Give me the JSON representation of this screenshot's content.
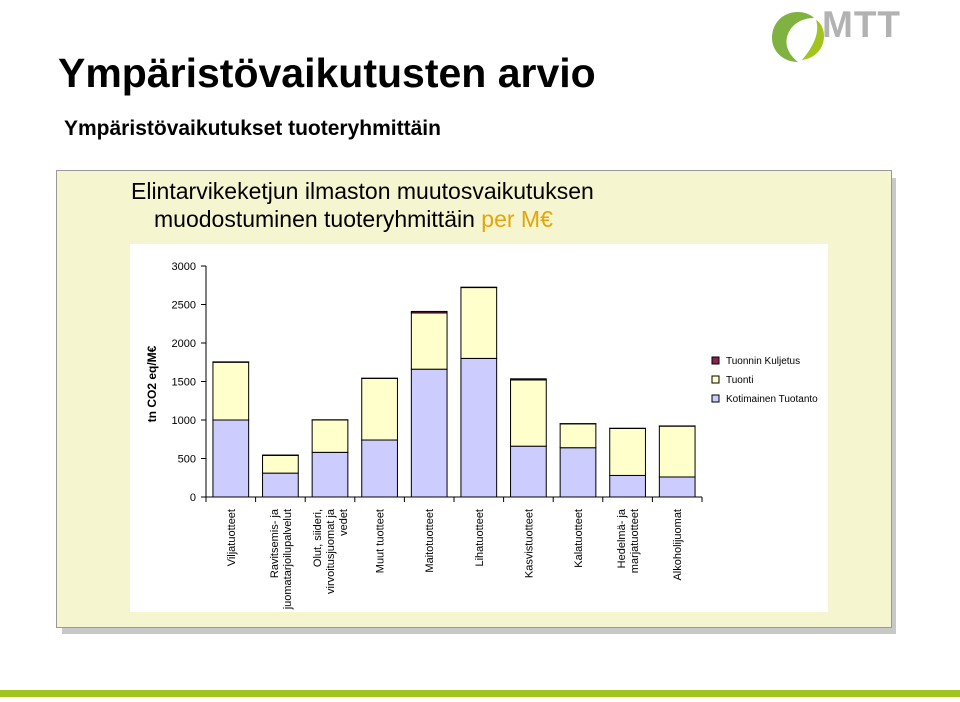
{
  "header": {
    "title": "Ympäristövaikutusten arvio",
    "subtitle": "Ympäristövaikutukset tuoteryhmittäin",
    "logo_text": "MTT",
    "logo_name": "mtt-leaf-logo"
  },
  "panel": {
    "title_line1": "Elintarvikeketjun ilmaston muutosvaikutuksen",
    "title_line2_main": "muodostuminen tuoteryhmittäin",
    "title_line2_accent": "per M€"
  },
  "colors": {
    "accent": "#e5a50a",
    "panel_bg": "#f5f5cf",
    "footer": "#a3c31f",
    "series_kuljetus": "#8b2252",
    "series_tuonti": "#ffffcc",
    "series_tuotanto": "#ccccff"
  },
  "chart_data": {
    "type": "bar",
    "stacked": true,
    "ylabel": "tn CO2 eq/M€",
    "ylim": [
      0,
      3000
    ],
    "yticks": [
      0,
      500,
      1000,
      1500,
      2000,
      2500,
      3000
    ],
    "grid": false,
    "legend_position": "right",
    "categories": [
      "Viljatuotteet",
      "Ravitsemis- ja juomatarjoilupalvelut",
      "Olut, siideri, virvoitusjuomat ja vedet",
      "Muut tuotteet",
      "Maitotuotteet",
      "Lihatuotteet",
      "Kasvistuotteet",
      "Kalatuotteet",
      "Hedelmä- ja marjatuotteet",
      "Alkoholijuomat"
    ],
    "category_lines": [
      [
        "Viljatuotteet"
      ],
      [
        "Ravitsemis- ja",
        "juomatarjoilupalvelut"
      ],
      [
        "Olut, siideri,",
        "virvoitusjuomat ja",
        "vedet"
      ],
      [
        "Muut tuotteet"
      ],
      [
        "Maitotuotteet"
      ],
      [
        "Lihatuotteet"
      ],
      [
        "Kasvistuotteet"
      ],
      [
        "Kalatuotteet"
      ],
      [
        "Hedelmä- ja",
        "marjatuotteet"
      ],
      [
        "Alkoholijuomat"
      ]
    ],
    "series": [
      {
        "name": "Kotimainen Tuotanto",
        "color": "#ccccff",
        "values": [
          1000,
          310,
          580,
          740,
          1660,
          1800,
          660,
          640,
          280,
          260
        ]
      },
      {
        "name": "Tuonti",
        "color": "#ffffcc",
        "values": [
          750,
          230,
          420,
          800,
          730,
          920,
          860,
          310,
          610,
          660
        ]
      },
      {
        "name": "Tuonnin Kuljetus",
        "color": "#8b2252",
        "values": [
          5,
          5,
          3,
          3,
          20,
          5,
          15,
          3,
          3,
          3
        ]
      }
    ],
    "legend_order": [
      "Tuonnin Kuljetus",
      "Tuonti",
      "Kotimainen Tuotanto"
    ]
  }
}
